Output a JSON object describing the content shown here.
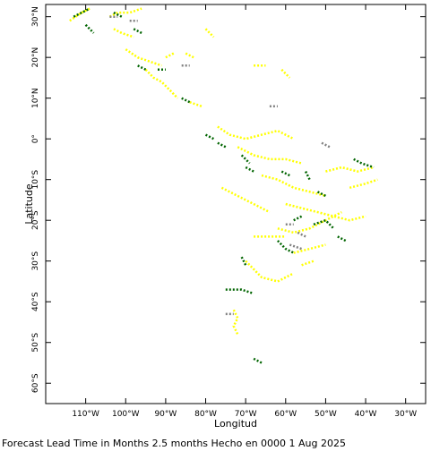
{
  "footer_text": "Forecast Lead Time in Months 2.5 months Hecho en 0000 1 Aug 2025",
  "chart_data": {
    "type": "map",
    "xlabel": "Longitud",
    "ylabel": "Latitude",
    "xlim": [
      -120,
      -25
    ],
    "ylim": [
      -65,
      33
    ],
    "x_ticks": [
      {
        "value": -110,
        "label": "110°W"
      },
      {
        "value": -100,
        "label": "100°W"
      },
      {
        "value": -90,
        "label": "90°W"
      },
      {
        "value": -80,
        "label": "80°W"
      },
      {
        "value": -70,
        "label": "70°W"
      },
      {
        "value": -60,
        "label": "60°W"
      },
      {
        "value": -50,
        "label": "50°W"
      },
      {
        "value": -40,
        "label": "40°W"
      },
      {
        "value": -30,
        "label": "30°W"
      }
    ],
    "y_ticks": [
      {
        "value": 30,
        "label": "30°N"
      },
      {
        "value": 20,
        "label": "20°N"
      },
      {
        "value": 10,
        "label": "10°N"
      },
      {
        "value": 0,
        "label": "0°"
      },
      {
        "value": -10,
        "label": "10°S"
      },
      {
        "value": -20,
        "label": "20°S"
      },
      {
        "value": -30,
        "label": "30°S"
      },
      {
        "value": -40,
        "label": "40°S"
      },
      {
        "value": -50,
        "label": "50°S"
      },
      {
        "value": -60,
        "label": "60°S"
      }
    ],
    "colors": {
      "yellow": "#ffff00",
      "green": "#006400",
      "gray": "#808080"
    },
    "series": [
      {
        "color_key": "yellow",
        "segments": [
          [
            [
              -114,
              29
            ],
            [
              -111,
              31
            ],
            [
              -109,
              32
            ]
          ],
          [
            [
              -104,
              30
            ],
            [
              -102,
              31
            ],
            [
              -99,
              31
            ],
            [
              -96,
              32
            ]
          ],
          [
            [
              -103,
              27
            ],
            [
              -101,
              26
            ],
            [
              -98,
              25
            ]
          ],
          [
            [
              -100,
              22
            ],
            [
              -97,
              20
            ],
            [
              -94,
              19
            ],
            [
              -91,
              18
            ]
          ],
          [
            [
              -95,
              17
            ],
            [
              -93,
              15
            ],
            [
              -91,
              14
            ],
            [
              -89,
              12
            ],
            [
              -87,
              10
            ]
          ],
          [
            [
              -84,
              9
            ],
            [
              -81,
              8
            ]
          ],
          [
            [
              -90,
              20
            ],
            [
              -88,
              21
            ]
          ],
          [
            [
              -85,
              21
            ],
            [
              -83,
              20
            ]
          ],
          [
            [
              -80,
              27
            ],
            [
              -78,
              25
            ]
          ],
          [
            [
              -68,
              18
            ],
            [
              -65,
              18
            ]
          ],
          [
            [
              -61,
              17
            ],
            [
              -59,
              15
            ]
          ],
          [
            [
              -77,
              3
            ],
            [
              -74,
              1
            ],
            [
              -70,
              0
            ],
            [
              -66,
              1
            ],
            [
              -62,
              2
            ],
            [
              -58,
              0
            ]
          ],
          [
            [
              -72,
              -2
            ],
            [
              -68,
              -4
            ],
            [
              -64,
              -5
            ],
            [
              -60,
              -5
            ],
            [
              -56,
              -6
            ]
          ],
          [
            [
              -66,
              -9
            ],
            [
              -62,
              -10
            ],
            [
              -58,
              -12
            ],
            [
              -54,
              -13
            ],
            [
              -50,
              -14
            ]
          ],
          [
            [
              -60,
              -16
            ],
            [
              -56,
              -17
            ],
            [
              -52,
              -18
            ],
            [
              -48,
              -19
            ],
            [
              -44,
              -20
            ],
            [
              -40,
              -19
            ]
          ],
          [
            [
              -76,
              -12
            ],
            [
              -72,
              -14
            ],
            [
              -68,
              -16
            ],
            [
              -64,
              -18
            ]
          ],
          [
            [
              -62,
              -22
            ],
            [
              -58,
              -23
            ],
            [
              -54,
              -22
            ],
            [
              -50,
              -20
            ],
            [
              -46,
              -18
            ]
          ],
          [
            [
              -68,
              -24
            ],
            [
              -64,
              -24
            ],
            [
              -60,
              -24
            ]
          ],
          [
            [
              -58,
              -28
            ],
            [
              -54,
              -27
            ],
            [
              -50,
              -26
            ]
          ],
          [
            [
              -70,
              -30
            ],
            [
              -68,
              -32
            ],
            [
              -66,
              -34
            ],
            [
              -62,
              -35
            ],
            [
              -58,
              -33
            ]
          ],
          [
            [
              -56,
              -31
            ],
            [
              -53,
              -30
            ]
          ],
          [
            [
              -73,
              -42
            ],
            [
              -72,
              -44
            ],
            [
              -73,
              -46
            ],
            [
              -72,
              -48
            ]
          ],
          [
            [
              -50,
              -8
            ],
            [
              -46,
              -7
            ],
            [
              -42,
              -8
            ],
            [
              -38,
              -7
            ]
          ],
          [
            [
              -44,
              -12
            ],
            [
              -40,
              -11
            ],
            [
              -37,
              -10
            ]
          ]
        ]
      },
      {
        "color_key": "green",
        "segments": [
          [
            [
              -113,
              30
            ],
            [
              -111,
              31
            ],
            [
              -109,
              32
            ]
          ],
          [
            [
              -110,
              28
            ],
            [
              -108,
              26
            ]
          ],
          [
            [
              -103,
              31
            ],
            [
              -101,
              30
            ]
          ],
          [
            [
              -98,
              27
            ],
            [
              -96,
              26
            ]
          ],
          [
            [
              -92,
              17
            ],
            [
              -90,
              17
            ]
          ],
          [
            [
              -97,
              18
            ],
            [
              -95,
              17
            ]
          ],
          [
            [
              -86,
              10
            ],
            [
              -84,
              9
            ]
          ],
          [
            [
              -80,
              1
            ],
            [
              -78,
              0
            ]
          ],
          [
            [
              -77,
              -1
            ],
            [
              -75,
              -2
            ]
          ],
          [
            [
              -71,
              -4
            ],
            [
              -69,
              -6
            ]
          ],
          [
            [
              -70,
              -7
            ],
            [
              -68,
              -8
            ]
          ],
          [
            [
              -61,
              -8
            ],
            [
              -59,
              -9
            ]
          ],
          [
            [
              -55,
              -8
            ],
            [
              -54,
              -10
            ]
          ],
          [
            [
              -52,
              -13
            ],
            [
              -50,
              -14
            ]
          ],
          [
            [
              -58,
              -20
            ],
            [
              -56,
              -19
            ]
          ],
          [
            [
              -53,
              -21
            ],
            [
              -50,
              -20
            ],
            [
              -48,
              -22
            ]
          ],
          [
            [
              -47,
              -24
            ],
            [
              -45,
              -25
            ]
          ],
          [
            [
              -62,
              -25
            ],
            [
              -60,
              -27
            ],
            [
              -58,
              -28
            ]
          ],
          [
            [
              -71,
              -29
            ],
            [
              -70,
              -31
            ]
          ],
          [
            [
              -75,
              -37
            ],
            [
              -71,
              -37
            ],
            [
              -68,
              -38
            ]
          ],
          [
            [
              -68,
              -54
            ],
            [
              -66,
              -55
            ]
          ],
          [
            [
              -43,
              -5
            ],
            [
              -41,
              -6
            ],
            [
              -38,
              -7
            ]
          ]
        ]
      },
      {
        "color_key": "gray",
        "segments": [
          [
            [
              -104,
              30
            ],
            [
              -102,
              30
            ]
          ],
          [
            [
              -99,
              29
            ],
            [
              -97,
              29
            ]
          ],
          [
            [
              -86,
              18
            ],
            [
              -84,
              18
            ]
          ],
          [
            [
              -64,
              8
            ],
            [
              -62,
              8
            ]
          ],
          [
            [
              -51,
              -1
            ],
            [
              -49,
              -2
            ]
          ],
          [
            [
              -60,
              -21
            ],
            [
              -58,
              -21
            ]
          ],
          [
            [
              -57,
              -23
            ],
            [
              -55,
              -24
            ]
          ],
          [
            [
              -59,
              -26
            ],
            [
              -56,
              -27
            ]
          ],
          [
            [
              -75,
              -43
            ],
            [
              -73,
              -43
            ]
          ]
        ]
      }
    ]
  }
}
